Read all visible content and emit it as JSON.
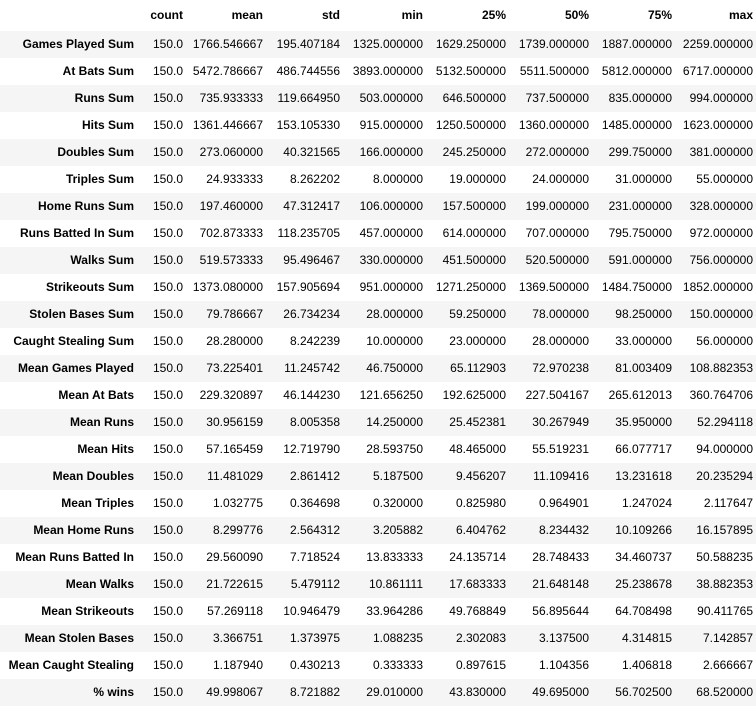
{
  "table": {
    "index_header": "",
    "columns": [
      "count",
      "mean",
      "std",
      "min",
      "25%",
      "50%",
      "75%",
      "max"
    ],
    "rows": [
      {
        "label": "Games Played Sum",
        "cells": [
          "150.0",
          "1766.546667",
          "195.407184",
          "1325.000000",
          "1629.250000",
          "1739.000000",
          "1887.000000",
          "2259.000000"
        ]
      },
      {
        "label": "At Bats Sum",
        "cells": [
          "150.0",
          "5472.786667",
          "486.744556",
          "3893.000000",
          "5132.500000",
          "5511.500000",
          "5812.000000",
          "6717.000000"
        ]
      },
      {
        "label": "Runs Sum",
        "cells": [
          "150.0",
          "735.933333",
          "119.664950",
          "503.000000",
          "646.500000",
          "737.500000",
          "835.000000",
          "994.000000"
        ]
      },
      {
        "label": "Hits Sum",
        "cells": [
          "150.0",
          "1361.446667",
          "153.105330",
          "915.000000",
          "1250.500000",
          "1360.000000",
          "1485.000000",
          "1623.000000"
        ]
      },
      {
        "label": "Doubles Sum",
        "cells": [
          "150.0",
          "273.060000",
          "40.321565",
          "166.000000",
          "245.250000",
          "272.000000",
          "299.750000",
          "381.000000"
        ]
      },
      {
        "label": "Triples Sum",
        "cells": [
          "150.0",
          "24.933333",
          "8.262202",
          "8.000000",
          "19.000000",
          "24.000000",
          "31.000000",
          "55.000000"
        ]
      },
      {
        "label": "Home Runs Sum",
        "cells": [
          "150.0",
          "197.460000",
          "47.312417",
          "106.000000",
          "157.500000",
          "199.000000",
          "231.000000",
          "328.000000"
        ]
      },
      {
        "label": "Runs Batted In Sum",
        "cells": [
          "150.0",
          "702.873333",
          "118.235705",
          "457.000000",
          "614.000000",
          "707.000000",
          "795.750000",
          "972.000000"
        ]
      },
      {
        "label": "Walks Sum",
        "cells": [
          "150.0",
          "519.573333",
          "95.496467",
          "330.000000",
          "451.500000",
          "520.500000",
          "591.000000",
          "756.000000"
        ]
      },
      {
        "label": "Strikeouts Sum",
        "cells": [
          "150.0",
          "1373.080000",
          "157.905694",
          "951.000000",
          "1271.250000",
          "1369.500000",
          "1484.750000",
          "1852.000000"
        ]
      },
      {
        "label": "Stolen Bases Sum",
        "cells": [
          "150.0",
          "79.786667",
          "26.734234",
          "28.000000",
          "59.250000",
          "78.000000",
          "98.250000",
          "150.000000"
        ]
      },
      {
        "label": "Caught Stealing Sum",
        "cells": [
          "150.0",
          "28.280000",
          "8.242239",
          "10.000000",
          "23.000000",
          "28.000000",
          "33.000000",
          "56.000000"
        ]
      },
      {
        "label": "Mean Games Played",
        "cells": [
          "150.0",
          "73.225401",
          "11.245742",
          "46.750000",
          "65.112903",
          "72.970238",
          "81.003409",
          "108.882353"
        ]
      },
      {
        "label": "Mean At Bats",
        "cells": [
          "150.0",
          "229.320897",
          "46.144230",
          "121.656250",
          "192.625000",
          "227.504167",
          "265.612013",
          "360.764706"
        ]
      },
      {
        "label": "Mean Runs",
        "cells": [
          "150.0",
          "30.956159",
          "8.005358",
          "14.250000",
          "25.452381",
          "30.267949",
          "35.950000",
          "52.294118"
        ]
      },
      {
        "label": "Mean Hits",
        "cells": [
          "150.0",
          "57.165459",
          "12.719790",
          "28.593750",
          "48.465000",
          "55.519231",
          "66.077717",
          "94.000000"
        ]
      },
      {
        "label": "Mean Doubles",
        "cells": [
          "150.0",
          "11.481029",
          "2.861412",
          "5.187500",
          "9.456207",
          "11.109416",
          "13.231618",
          "20.235294"
        ]
      },
      {
        "label": "Mean Triples",
        "cells": [
          "150.0",
          "1.032775",
          "0.364698",
          "0.320000",
          "0.825980",
          "0.964901",
          "1.247024",
          "2.117647"
        ]
      },
      {
        "label": "Mean Home Runs",
        "cells": [
          "150.0",
          "8.299776",
          "2.564312",
          "3.205882",
          "6.404762",
          "8.234432",
          "10.109266",
          "16.157895"
        ]
      },
      {
        "label": "Mean Runs Batted In",
        "cells": [
          "150.0",
          "29.560090",
          "7.718524",
          "13.833333",
          "24.135714",
          "28.748433",
          "34.460737",
          "50.588235"
        ]
      },
      {
        "label": "Mean Walks",
        "cells": [
          "150.0",
          "21.722615",
          "5.479112",
          "10.861111",
          "17.683333",
          "21.648148",
          "25.238678",
          "38.882353"
        ]
      },
      {
        "label": "Mean Strikeouts",
        "cells": [
          "150.0",
          "57.269118",
          "10.946479",
          "33.964286",
          "49.768849",
          "56.895644",
          "64.708498",
          "90.411765"
        ]
      },
      {
        "label": "Mean Stolen Bases",
        "cells": [
          "150.0",
          "3.366751",
          "1.373975",
          "1.088235",
          "2.302083",
          "3.137500",
          "4.314815",
          "7.142857"
        ]
      },
      {
        "label": "Mean Caught Stealing",
        "cells": [
          "150.0",
          "1.187940",
          "0.430213",
          "0.333333",
          "0.897615",
          "1.104356",
          "1.406818",
          "2.666667"
        ]
      },
      {
        "label": "% wins",
        "cells": [
          "150.0",
          "49.998067",
          "8.721882",
          "29.010000",
          "43.830000",
          "49.695000",
          "56.702500",
          "68.520000"
        ]
      }
    ]
  }
}
